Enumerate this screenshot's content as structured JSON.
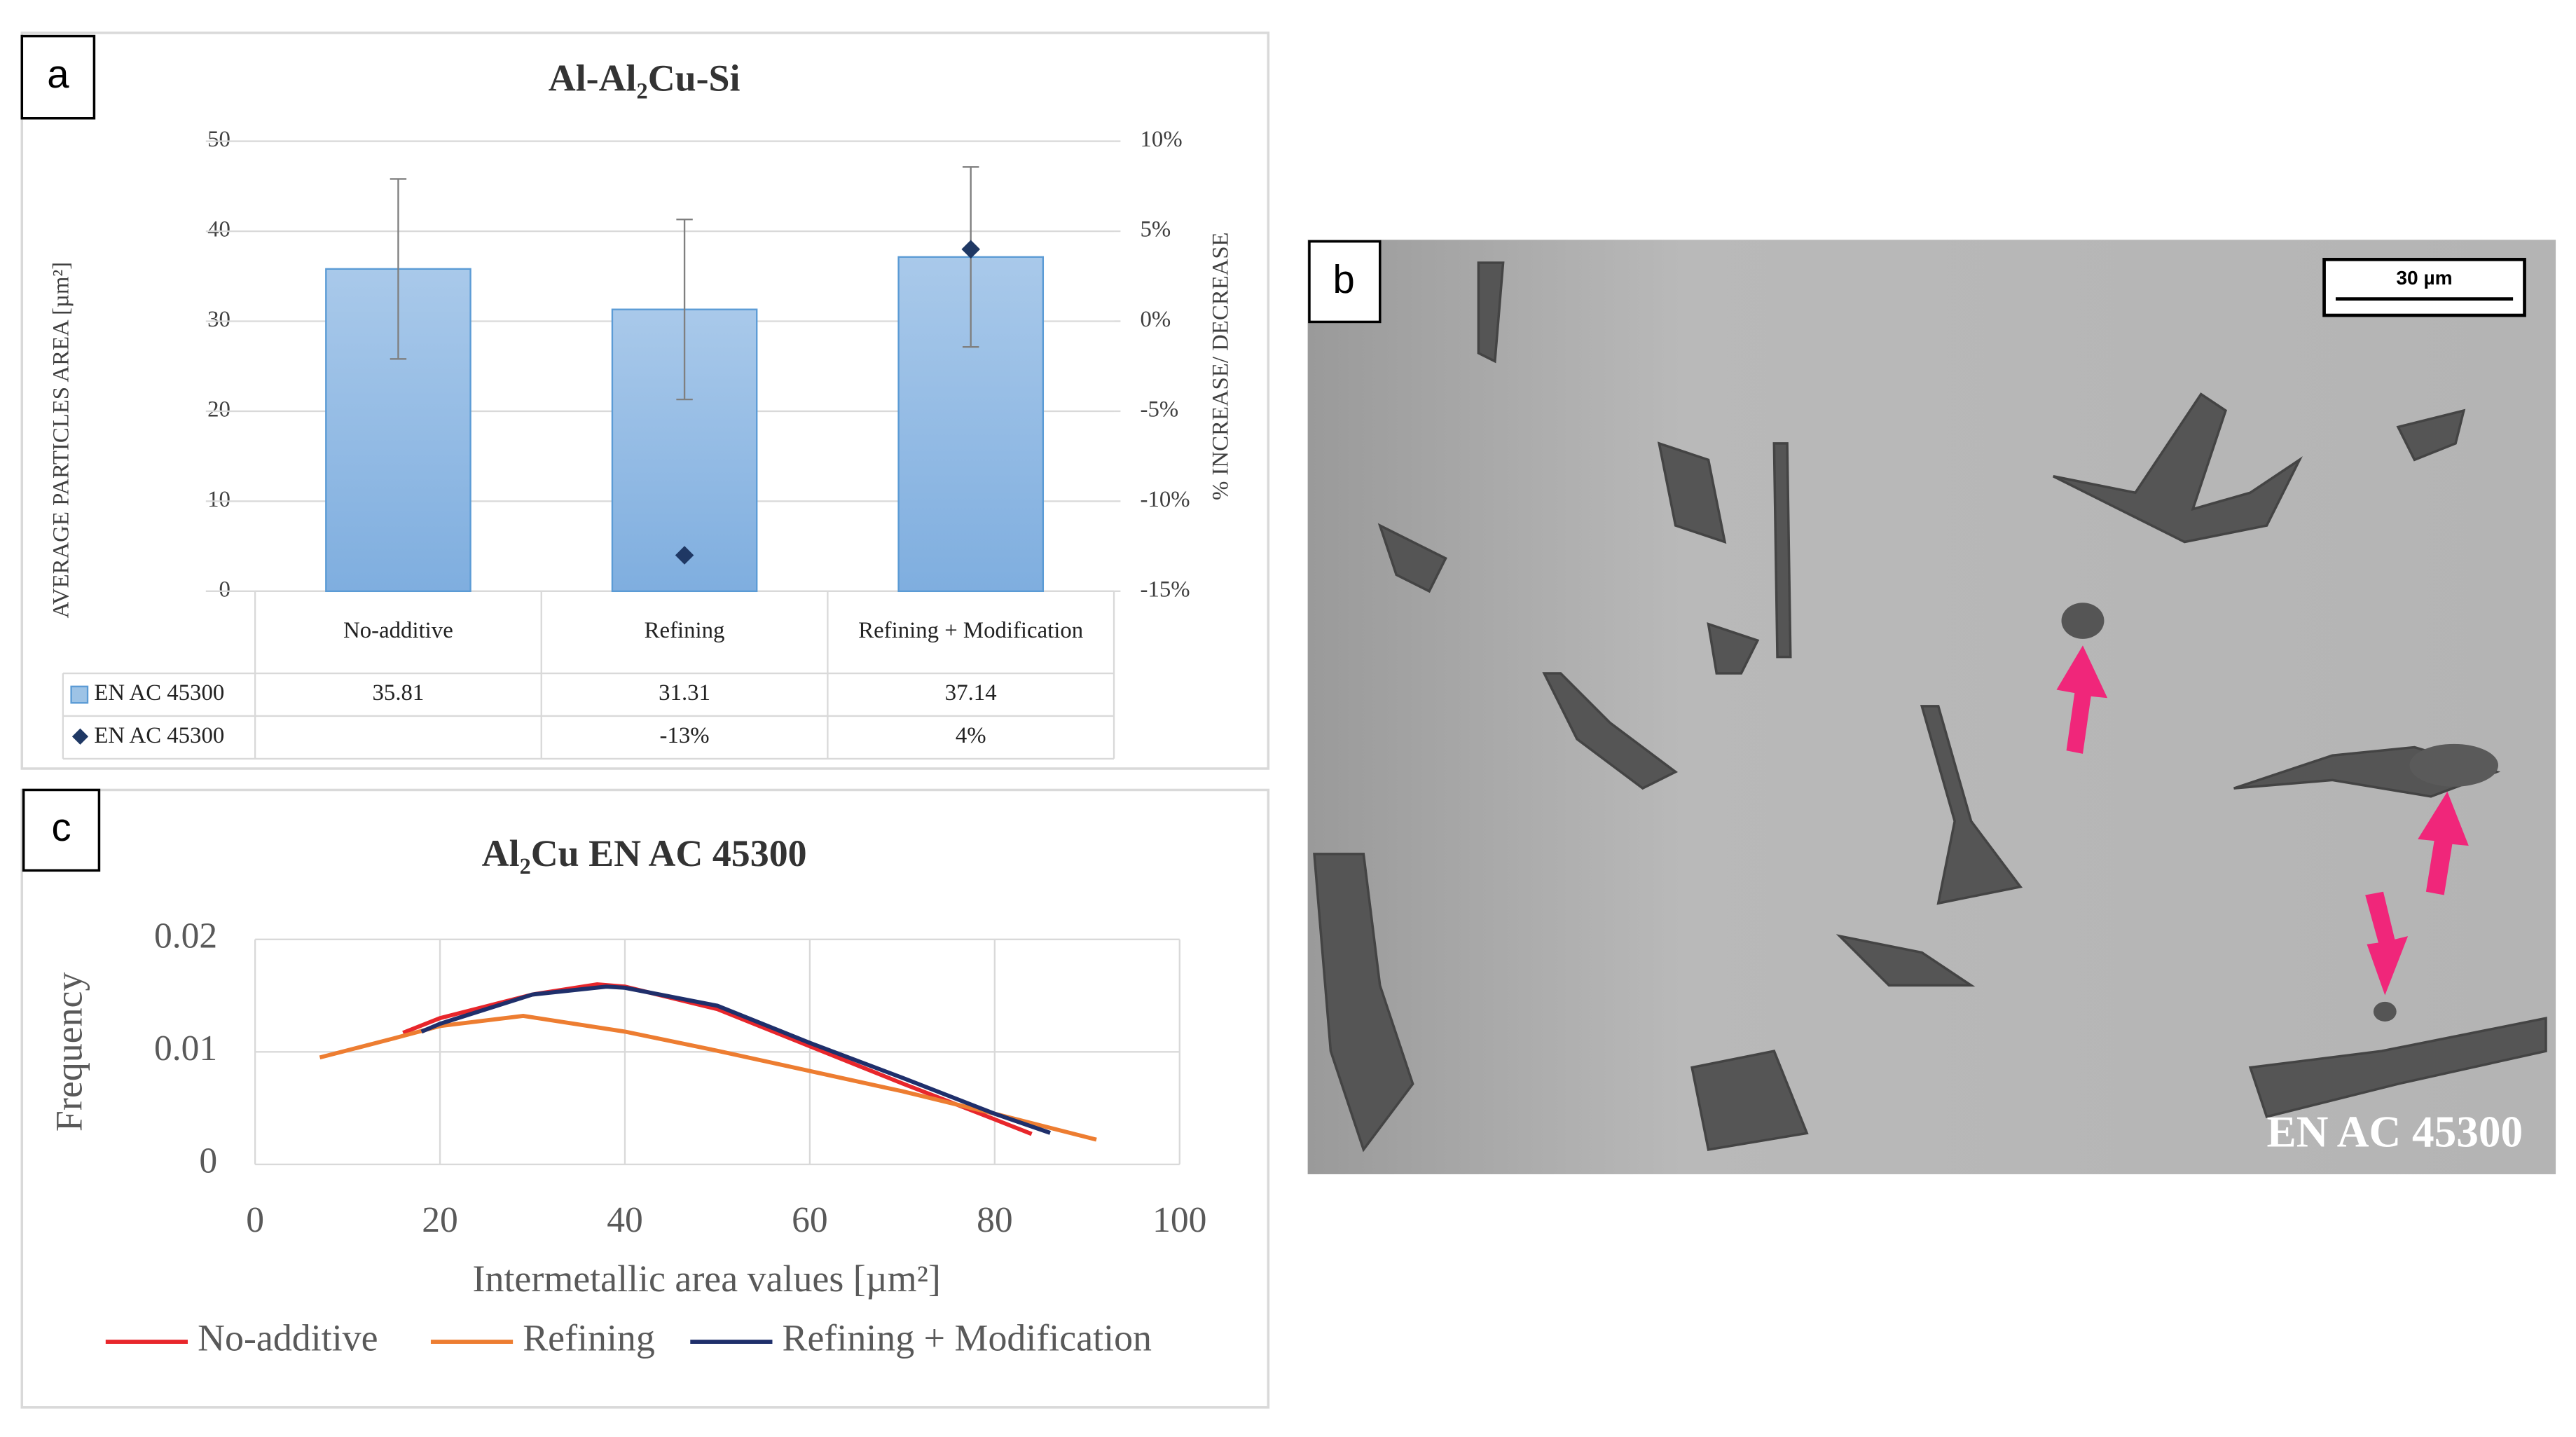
{
  "chart_data": [
    {
      "type": "bar",
      "panel_label": "a",
      "title": "Al-Al₂Cu-Si",
      "ylabel": "AVERAGE PARTICLES AREA [µm²]",
      "y2label": "% INCREASE/ DECREASE",
      "categories": [
        "No-additive",
        "Refining",
        "Refining + Modification"
      ],
      "series": [
        {
          "name": "EN AC 45300",
          "color": "#9dc3e6",
          "values": [
            35.81,
            31.31,
            37.14
          ],
          "errors": [
            10,
            10,
            10
          ]
        },
        {
          "name": "EN AC 45300",
          "color": "#1f3864",
          "axis": "y2",
          "values": [
            null,
            -13,
            4
          ],
          "value_labels": [
            null,
            "-13%",
            "4%"
          ]
        }
      ],
      "ylim": [
        0,
        50
      ],
      "yticks": [
        0,
        10,
        20,
        30,
        40,
        50
      ],
      "y2lim": [
        -15,
        10
      ],
      "y2ticks": [
        {
          "value": -15,
          "label": "-15%"
        },
        {
          "value": -10,
          "label": "-10%"
        },
        {
          "value": -5,
          "label": "-5%"
        },
        {
          "value": 0,
          "label": "0%"
        },
        {
          "value": 5,
          "label": "5%"
        },
        {
          "value": 10,
          "label": "10%"
        }
      ],
      "grid": true,
      "legend": "table"
    },
    {
      "type": "line",
      "panel_label": "c",
      "title": "Al₂Cu EN AC 45300",
      "xlabel": "Intermetallic area values [µm²]",
      "ylabel": "Frequency",
      "series": [
        {
          "name": "No-additive",
          "color": "#e8262b",
          "x": [
            16,
            20,
            30,
            37,
            40,
            50,
            60,
            70,
            80,
            84
          ],
          "values": [
            0.0117,
            0.013,
            0.0151,
            0.016,
            0.0158,
            0.0138,
            0.0105,
            0.0072,
            0.004,
            0.0027
          ]
        },
        {
          "name": "Refining",
          "color": "#ed7d31",
          "x": [
            7,
            15,
            20,
            29,
            40,
            50,
            60,
            70,
            80,
            91
          ],
          "values": [
            0.0095,
            0.0112,
            0.0123,
            0.0132,
            0.0118,
            0.0101,
            0.0083,
            0.0065,
            0.0045,
            0.0022
          ]
        },
        {
          "name": "Refining + Modification",
          "color": "#1f2f6b",
          "x": [
            18,
            20,
            30,
            38,
            40,
            50,
            60,
            70,
            80,
            86
          ],
          "values": [
            0.0118,
            0.0125,
            0.0151,
            0.0158,
            0.0157,
            0.0141,
            0.0108,
            0.0077,
            0.0045,
            0.0028
          ]
        }
      ],
      "xlim": [
        0,
        100
      ],
      "xticks": [
        0,
        20,
        40,
        60,
        80,
        100
      ],
      "ylim": [
        0,
        0.02
      ],
      "yticks": [
        0,
        0.01,
        0.02
      ],
      "grid": true,
      "legend": "bottom"
    }
  ],
  "image": {
    "panel_label": "b",
    "scale_bar": "30 µm",
    "caption": "EN AC 45300"
  }
}
